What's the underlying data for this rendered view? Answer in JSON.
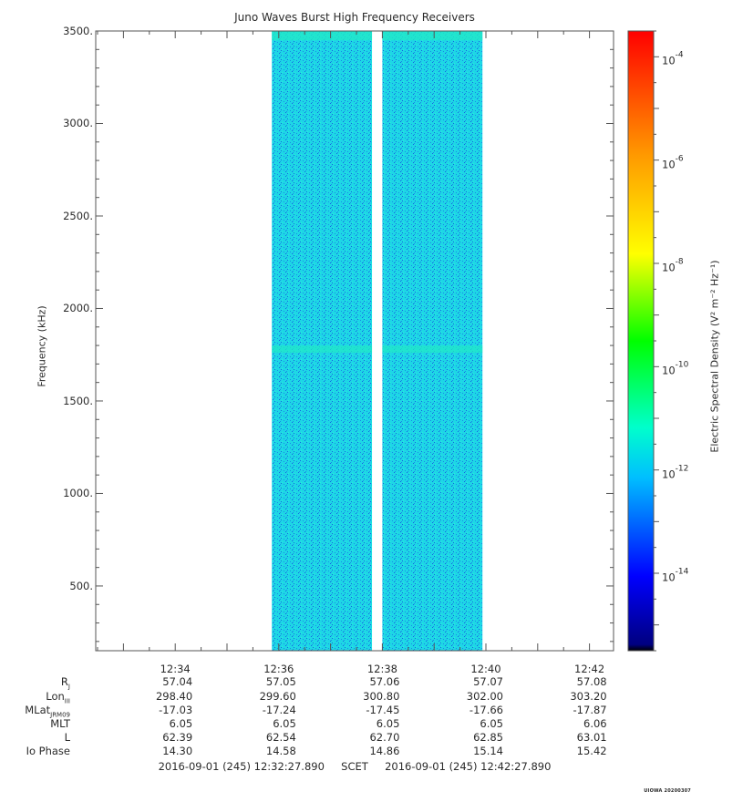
{
  "chart_data": {
    "type": "heatmap",
    "title": "Juno Waves Burst High Frequency Receivers",
    "ylabel": "Frequency (kHz)",
    "ylim": [
      150,
      3500
    ],
    "yticks": [
      "3500.",
      "3000.",
      "2500.",
      "2000.",
      "1500.",
      "1000.",
      "500."
    ],
    "ytick_values": [
      3500,
      3000,
      2500,
      2000,
      1500,
      1000,
      500
    ],
    "xlim_minutes": [
      "12:32:27.890",
      "12:42:27.890"
    ],
    "xticks": [
      "12:34",
      "12:36",
      "12:38",
      "12:40",
      "12:42"
    ],
    "data_blocks": [
      {
        "start": "12:35:52",
        "end": "12:37:48"
      },
      {
        "start": "12:38:00",
        "end": "12:39:56"
      }
    ],
    "typical_level": "10^-12",
    "enhanced_band_khz": [
      1760,
      1800
    ],
    "colorbar": {
      "label": "Electric Spectral Density (V² m⁻² Hz⁻¹)",
      "scale": "log",
      "range_exp": [
        -15.5,
        -3.5
      ],
      "tick_exps": [
        -4,
        -6,
        -8,
        -10,
        -12,
        -14
      ],
      "tick_base": "10",
      "tick_labels": [
        "-4",
        "-6",
        "-8",
        "-10",
        "-12",
        "-14"
      ]
    },
    "ephemeris": {
      "rows": [
        {
          "name": "R",
          "sub": "J",
          "values": [
            "57.04",
            "57.05",
            "57.06",
            "57.07",
            "57.08"
          ]
        },
        {
          "name": "Lon",
          "sub": "III",
          "values": [
            "298.40",
            "299.60",
            "300.80",
            "302.00",
            "303.20"
          ]
        },
        {
          "name": "MLat",
          "sub": "JRM09",
          "values": [
            "-17.03",
            "-17.24",
            "-17.45",
            "-17.66",
            "-17.87"
          ]
        },
        {
          "name": "MLT",
          "sub": "",
          "values": [
            "6.05",
            "6.05",
            "6.05",
            "6.05",
            "6.06"
          ]
        },
        {
          "name": "L",
          "sub": "",
          "values": [
            "62.39",
            "62.54",
            "62.70",
            "62.85",
            "63.01"
          ]
        },
        {
          "name": "Io Phase",
          "sub": "",
          "values": [
            "14.30",
            "14.58",
            "14.86",
            "15.14",
            "15.42"
          ]
        }
      ]
    },
    "time_range": "2016-09-01 (245) 12:32:27.890     SCET     2016-09-01 (245) 12:42:27.890",
    "stamp": "UIOWA 20200307"
  }
}
